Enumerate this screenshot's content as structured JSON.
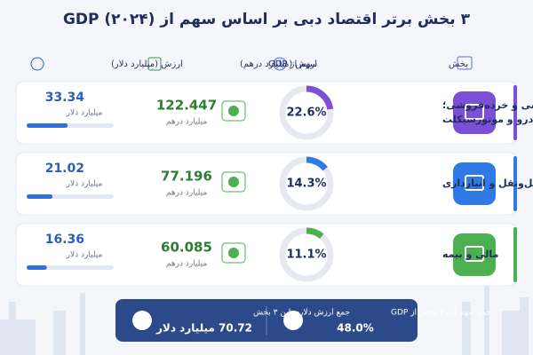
{
  "header": {
    "title": "۳ بخش برتر اقتصاد دبی بر اساس سهم از GDP (۲۰۲۴)"
  },
  "columns": [
    "بخش",
    "سهم از GDP",
    "ارزش (میلیارد درهم)",
    "ارزش (میلیارد دلار)"
  ],
  "rows": [
    {
      "sector": [
        "عمده‌فروشی و خرده‌فروشی؛",
        "تعمیر خودرو و موتورسیکلت"
      ],
      "gdp_share": 22.6,
      "gdp_share_label": "22.6%",
      "value_aed": 122.447,
      "value_aed_unit": "میلیارد درهم",
      "value_usd": 33.34,
      "value_usd_unit": "میلیارد دلار",
      "color": "#7b4fd8"
    },
    {
      "sector": [
        "حمل‌ونقل و انبارداری"
      ],
      "gdp_share": 14.3,
      "gdp_share_label": "14.3%",
      "value_aed": 77.196,
      "value_aed_unit": "میلیارد درهم",
      "value_usd": 21.02,
      "value_usd_unit": "میلیارد دلار",
      "color": "#2f7ae5"
    },
    {
      "sector": [
        "مالی و بیمه"
      ],
      "gdp_share": 11.1,
      "gdp_share_label": "11.1%",
      "value_aed": 60.085,
      "value_aed_unit": "میلیارد درهم",
      "value_usd": 16.36,
      "value_usd_unit": "میلیارد دلار",
      "color": "#4caf50"
    }
  ],
  "summary": {
    "share_title": "جمع سهم این ۳ بخش از GDP",
    "share_total": 48.0,
    "share_total_label": "48.0%",
    "usd_title": "جمع ارزش دلاری این ۳ بخش",
    "usd_total": 70.72,
    "usd_total_label": "70.72 میلیارد دلار"
  }
}
